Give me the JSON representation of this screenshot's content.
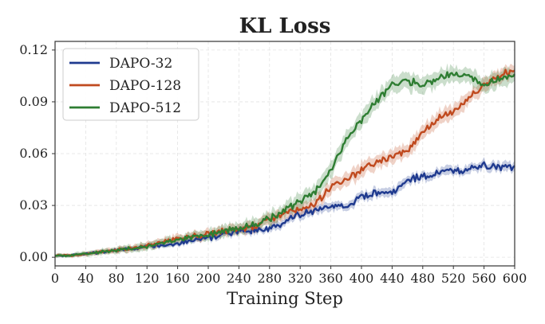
{
  "chart_data": {
    "type": "line",
    "title": "KL Loss",
    "xlabel": "Training Step",
    "ylabel": "",
    "xlim": [
      0,
      600
    ],
    "ylim": [
      -0.005,
      0.125
    ],
    "xticks": [
      0,
      40,
      80,
      120,
      160,
      200,
      240,
      280,
      320,
      360,
      400,
      440,
      480,
      520,
      560,
      600
    ],
    "xtick_labels": [
      "0",
      "40",
      "80",
      "120",
      "160",
      "200",
      "240",
      "280",
      "320",
      "360",
      "400",
      "440",
      "480",
      "520",
      "560",
      "600"
    ],
    "yticks": [
      0.0,
      0.03,
      0.06,
      0.09,
      0.12
    ],
    "ytick_labels": [
      "0.00",
      "0.03",
      "0.06",
      "0.09",
      "0.12"
    ],
    "grid": true,
    "legend_position": "top-left",
    "series": [
      {
        "name": "DAPO-32",
        "color": "#1f3a8f",
        "x": [
          0,
          20,
          40,
          60,
          80,
          100,
          120,
          140,
          160,
          180,
          200,
          220,
          240,
          260,
          280,
          300,
          320,
          340,
          360,
          380,
          400,
          420,
          440,
          460,
          480,
          500,
          520,
          540,
          560,
          580,
          600
        ],
        "y": [
          0.001,
          0.001,
          0.002,
          0.003,
          0.004,
          0.005,
          0.006,
          0.007,
          0.008,
          0.01,
          0.011,
          0.013,
          0.015,
          0.016,
          0.017,
          0.02,
          0.025,
          0.027,
          0.03,
          0.028,
          0.035,
          0.037,
          0.037,
          0.045,
          0.047,
          0.049,
          0.05,
          0.051,
          0.053,
          0.052,
          0.053
        ],
        "band": 0.0025
      },
      {
        "name": "DAPO-128",
        "color": "#c04a1f",
        "x": [
          0,
          20,
          40,
          60,
          80,
          100,
          120,
          140,
          160,
          180,
          200,
          220,
          240,
          260,
          280,
          300,
          320,
          340,
          360,
          380,
          400,
          420,
          440,
          460,
          480,
          500,
          520,
          540,
          560,
          580,
          600
        ],
        "y": [
          0.001,
          0.001,
          0.002,
          0.003,
          0.004,
          0.005,
          0.007,
          0.009,
          0.011,
          0.012,
          0.014,
          0.015,
          0.016,
          0.018,
          0.022,
          0.025,
          0.028,
          0.032,
          0.04,
          0.046,
          0.05,
          0.055,
          0.058,
          0.062,
          0.072,
          0.08,
          0.085,
          0.092,
          0.1,
          0.105,
          0.108
        ],
        "band": 0.004
      },
      {
        "name": "DAPO-512",
        "color": "#2e7d32",
        "x": [
          0,
          20,
          40,
          60,
          80,
          100,
          120,
          140,
          160,
          180,
          200,
          220,
          240,
          260,
          280,
          300,
          320,
          340,
          360,
          380,
          400,
          420,
          440,
          460,
          480,
          500,
          520,
          540,
          560,
          580,
          600
        ],
        "y": [
          0.001,
          0.001,
          0.002,
          0.003,
          0.004,
          0.005,
          0.006,
          0.008,
          0.01,
          0.012,
          0.013,
          0.015,
          0.017,
          0.019,
          0.022,
          0.027,
          0.032,
          0.038,
          0.05,
          0.068,
          0.08,
          0.09,
          0.1,
          0.102,
          0.1,
          0.104,
          0.106,
          0.104,
          0.1,
          0.103,
          0.106
        ],
        "band": 0.0045
      }
    ]
  }
}
